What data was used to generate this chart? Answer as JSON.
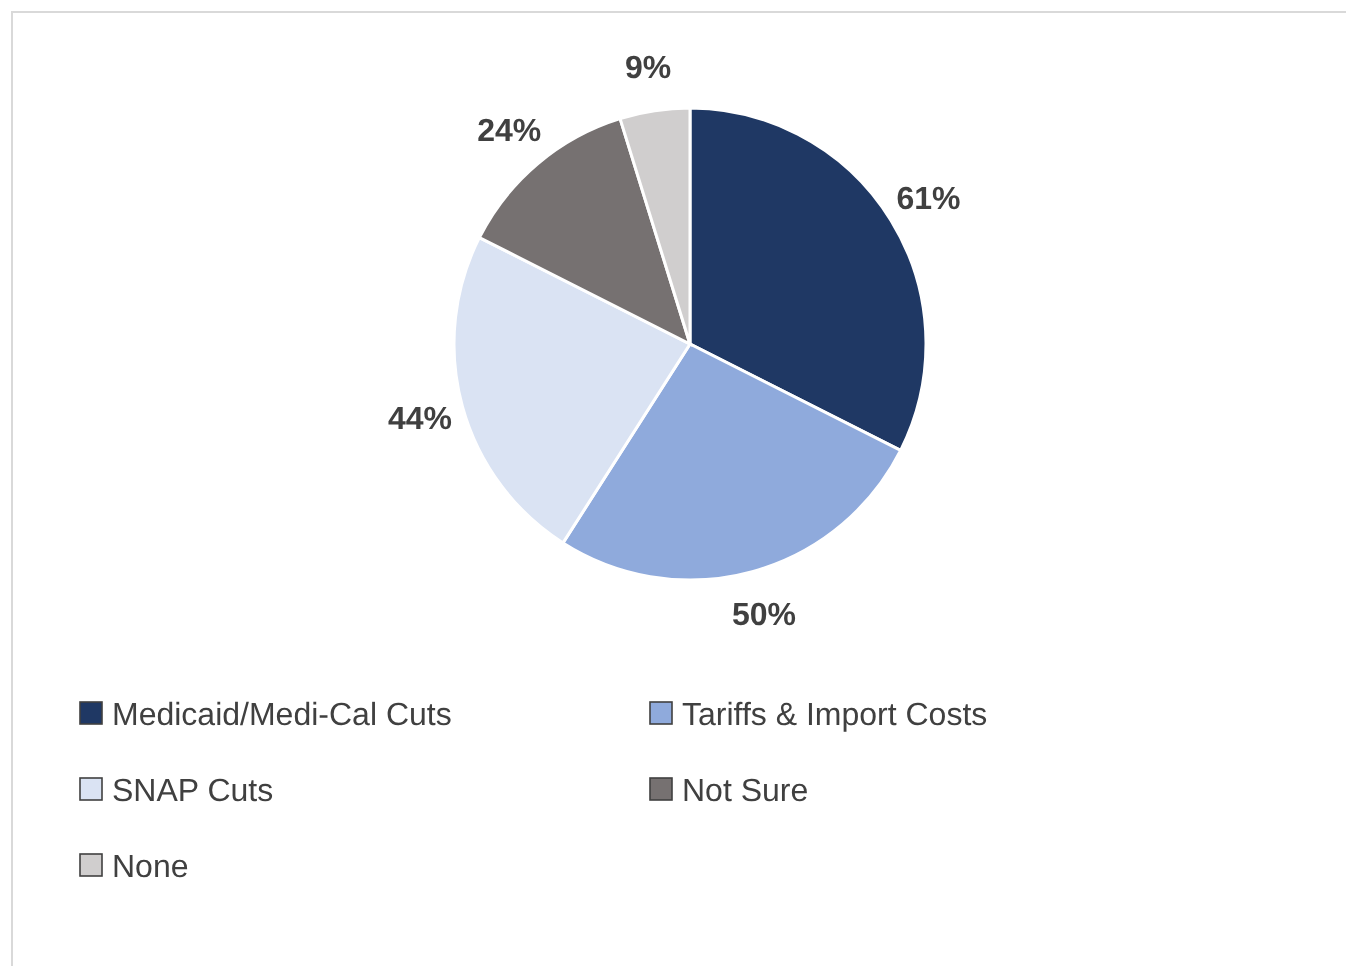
{
  "chart_data": {
    "type": "pie",
    "categories": [
      "Medicaid/Medi-Cal Cuts",
      "Tariffs & Import Costs",
      "SNAP Cuts",
      "Not Sure",
      "None"
    ],
    "values": [
      61,
      50,
      44,
      24,
      9
    ],
    "colors": [
      "#1f3864",
      "#8faadc",
      "#dae3f3",
      "#767171",
      "#d0cece"
    ],
    "value_labels": [
      "61%",
      "50%",
      "44%",
      "24%",
      "9%"
    ],
    "legend": "bottom"
  }
}
